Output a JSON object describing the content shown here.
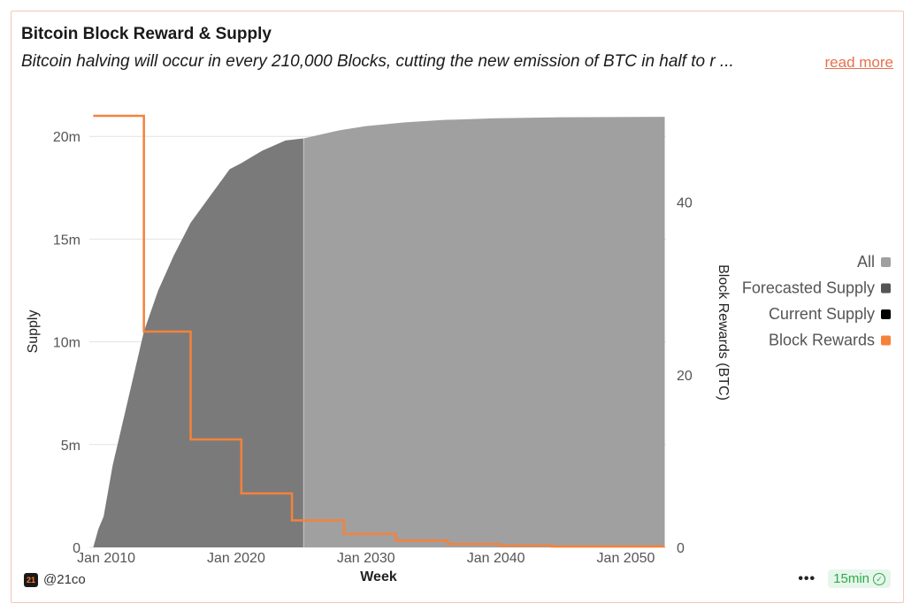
{
  "card": {
    "title": "Bitcoin Block Reward & Supply",
    "subtitle": "Bitcoin halving will occur in every 210,000 Blocks, cutting the new emission of BTC in half to r ...",
    "read_more": "read more"
  },
  "footer": {
    "handle": "@21co",
    "logo_text": "21",
    "refresh": "15min",
    "more_icon": "more-dots-icon",
    "check_icon": "check-circle-icon"
  },
  "colors": {
    "all": "#a0a0a0",
    "forecast": "#7a7a7a",
    "current": "#000000",
    "rewards": "#f5823a"
  },
  "chart_data": {
    "type": "area",
    "xlabel": "Week",
    "ylabel": "Supply",
    "y2label": "Block Rewards (BTC)",
    "xlim": [
      2008.7,
      2053.1
    ],
    "ylim": [
      0,
      21000000
    ],
    "y2lim": [
      0,
      50
    ],
    "x_ticks": [
      2010,
      2020,
      2030,
      2040,
      2050
    ],
    "x_tick_labels": [
      "Jan 2010",
      "Jan 2020",
      "Jan 2030",
      "Jan 2040",
      "Jan 2050"
    ],
    "y_ticks": [
      0,
      5000000,
      10000000,
      15000000,
      20000000
    ],
    "y_tick_labels": [
      "0",
      "5m",
      "10m",
      "15m",
      "20m"
    ],
    "y2_ticks": [
      0,
      20,
      40
    ],
    "y2_tick_labels": [
      "0",
      "20",
      "40"
    ],
    "grid": true,
    "legend_position": "right",
    "legend": [
      "All",
      "Forecasted Supply",
      "Current Supply",
      "Block Rewards"
    ],
    "series": [
      {
        "name": "Forecasted Supply",
        "color": "#7a7a7a",
        "x": [
          2009.0,
          2009.4,
          2009.8,
          2010.5,
          2011.5,
          2012.9,
          2014.0,
          2015.2,
          2016.5,
          2018.0,
          2019.5,
          2020.4,
          2022.0,
          2023.8,
          2025.2
        ],
        "y": [
          0,
          900000,
          1500000,
          4000000,
          6700000,
          10500000,
          12500000,
          14200000,
          15800000,
          17100000,
          18400000,
          18700000,
          19300000,
          19800000,
          19900000
        ]
      },
      {
        "name": "All",
        "color": "#a0a0a0",
        "x": [
          2025.2,
          2028.0,
          2030.0,
          2033.0,
          2036.0,
          2040.0,
          2045.0,
          2053.0
        ],
        "y": [
          19900000,
          20300000,
          20500000,
          20680000,
          20800000,
          20880000,
          20930000,
          20950000
        ]
      },
      {
        "name": "Block Rewards",
        "color": "#f5823a",
        "axis": "right",
        "type": "step",
        "x": [
          2009.0,
          2012.9,
          2016.5,
          2020.4,
          2024.3,
          2028.3,
          2032.3,
          2036.3,
          2040.3,
          2044.3,
          2053.0
        ],
        "y": [
          50,
          25,
          12.5,
          6.25,
          3.125,
          1.5625,
          0.78125,
          0.390625,
          0.1953125,
          0.09765625,
          0.09765625
        ]
      }
    ]
  }
}
